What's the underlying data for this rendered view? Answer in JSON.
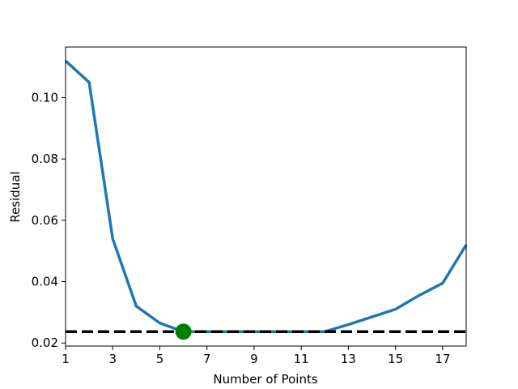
{
  "chart_data": {
    "type": "line",
    "title": "",
    "xlabel": "Number of Points",
    "ylabel": "Residual",
    "xlim": [
      1,
      18
    ],
    "ylim": [
      0.019,
      0.1165
    ],
    "x_ticks": [
      1,
      3,
      5,
      7,
      9,
      11,
      13,
      15,
      17
    ],
    "y_ticks": [
      0.02,
      0.04,
      0.06,
      0.08,
      0.1
    ],
    "y_tick_labels": [
      "0.02",
      "0.04",
      "0.06",
      "0.08",
      "0.10"
    ],
    "grid": false,
    "series": [
      {
        "color": "#1f77b4",
        "x": [
          1,
          2,
          3,
          4,
          5,
          6,
          7,
          8,
          9,
          10,
          11,
          12,
          13,
          14,
          15,
          16,
          17,
          18
        ],
        "y": [
          0.112,
          0.105,
          0.054,
          0.032,
          0.0265,
          0.0237,
          0.0237,
          0.0237,
          0.0237,
          0.0237,
          0.0237,
          0.0237,
          0.026,
          0.0285,
          0.031,
          0.0355,
          0.0395,
          0.052
        ]
      }
    ],
    "threshold": {
      "y": 0.0237,
      "color": "#000000",
      "style": "dashed"
    },
    "marker": {
      "x": 6,
      "y": 0.0237,
      "color": "#008000"
    }
  }
}
